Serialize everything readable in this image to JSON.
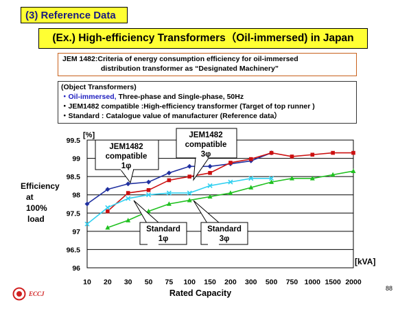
{
  "section_tag": "(3) Reference Data",
  "title": "(Ex.) High-efficiency Transformers（Oil-immersed) in Japan",
  "jem": {
    "line1": "JEM 1482:Criteria of energy consumption efficiency for oil-immersed",
    "line2": "distribution transformer as “Designated Machinery”"
  },
  "object": {
    "heading": "(Object Transformers)",
    "b1_blue": "・Oil-immersed,",
    "b1_rest": " Three-phase and Single-phase,  50Hz",
    "b2": "・JEM1482 compatible :High-efficiency transformer (Target of top runner )",
    "b3": "・Standard : Catalogue value of manufacturer (Reference data）"
  },
  "footer": {
    "logo": "ECCJ",
    "page": "88"
  },
  "colors": {
    "blue": "#2030a0",
    "red": "#cc1010",
    "cyan": "#30d0f0",
    "green": "#20c020",
    "accent_yellow": "#ffff33"
  },
  "chart_data": {
    "type": "line",
    "categories": [
      "10",
      "20",
      "30",
      "50",
      "75",
      "100",
      "150",
      "200",
      "300",
      "500",
      "750",
      "1000",
      "1500",
      "2000"
    ],
    "ylim": [
      96,
      99.5
    ],
    "yticks": [
      "99.5",
      "99",
      "98.5",
      "98",
      "97.5",
      "97",
      "96.5",
      "96"
    ],
    "ylabel_unit": "[%]",
    "ylabel": "Efficiency\nat\n100%\nload",
    "xlabel": "Rated Capacity",
    "xunit": "[kVA]",
    "grid": true,
    "series": [
      {
        "name": "JEM1482 compatible 1φ",
        "color": "#2030a0",
        "marker": "diamond",
        "values": [
          97.75,
          98.15,
          98.3,
          98.35,
          98.6,
          98.78,
          98.78,
          98.85,
          98.93,
          99.15,
          null,
          null,
          null,
          null
        ]
      },
      {
        "name": "JEM1482 compatible 3φ",
        "color": "#cc1010",
        "marker": "square",
        "values": [
          null,
          97.55,
          98.05,
          98.13,
          98.4,
          98.5,
          98.6,
          98.88,
          98.98,
          99.15,
          99.05,
          99.1,
          99.15,
          99.15
        ]
      },
      {
        "name": "Standard 1φ",
        "color": "#30d0f0",
        "marker": "cross",
        "values": [
          97.2,
          97.65,
          97.9,
          98.0,
          98.05,
          98.05,
          98.25,
          98.35,
          98.45,
          98.45,
          null,
          null,
          null,
          null
        ]
      },
      {
        "name": "Standard 3φ",
        "color": "#20c020",
        "marker": "triangle",
        "values": [
          null,
          97.1,
          97.3,
          97.55,
          97.75,
          97.85,
          97.95,
          98.05,
          98.2,
          98.35,
          98.45,
          98.45,
          98.55,
          98.65
        ]
      }
    ],
    "callouts": [
      {
        "line1": "JEM1482",
        "line2": "compatible",
        "line3": "1φ"
      },
      {
        "line1": "JEM1482",
        "line2": "compatible",
        "line3": "3φ"
      },
      {
        "line1": "Standard",
        "line2": "1φ"
      },
      {
        "line1": "Standard",
        "line2": "3φ"
      }
    ]
  }
}
